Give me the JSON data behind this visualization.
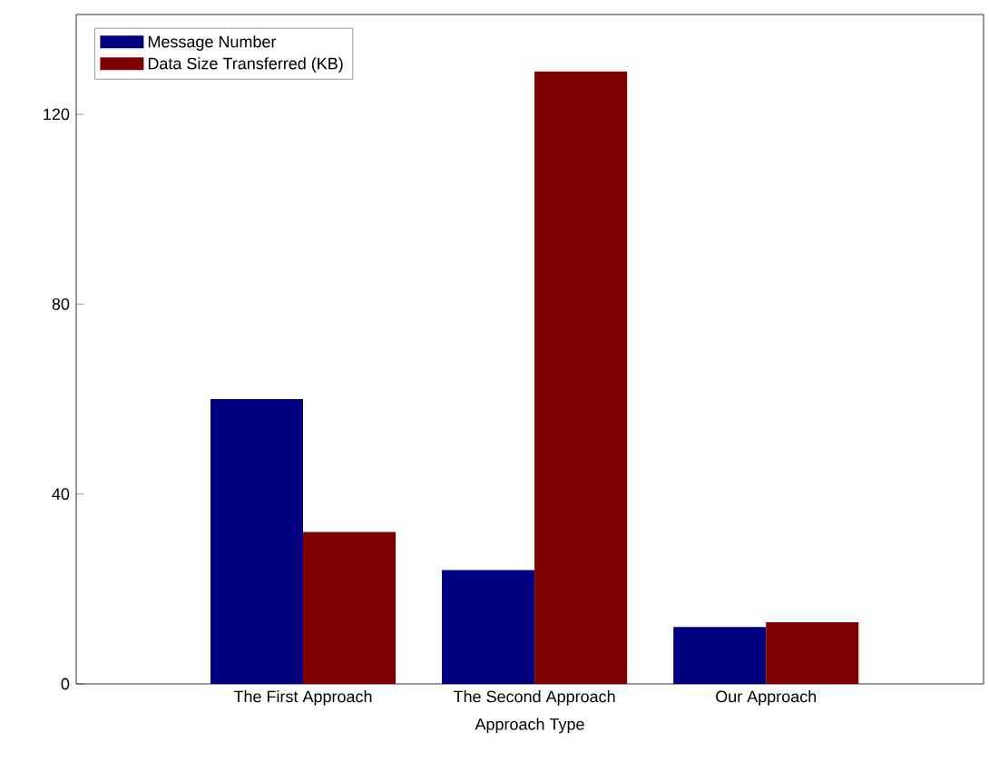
{
  "chart_data": {
    "type": "bar",
    "xlabel": "Approach Type",
    "categories": [
      "The First Approach",
      "The Second Approach",
      "Our Approach"
    ],
    "series": [
      {
        "name": "Message Number",
        "color": "#000080",
        "values": [
          60,
          24,
          12
        ]
      },
      {
        "name": "Data Size Transferred (KB)",
        "color": "#800000",
        "values": [
          32,
          129,
          13
        ]
      }
    ],
    "ylim": [
      0,
      141
    ],
    "yticks": [
      0,
      40,
      80,
      120
    ],
    "legend": "top left",
    "grid": false
  }
}
